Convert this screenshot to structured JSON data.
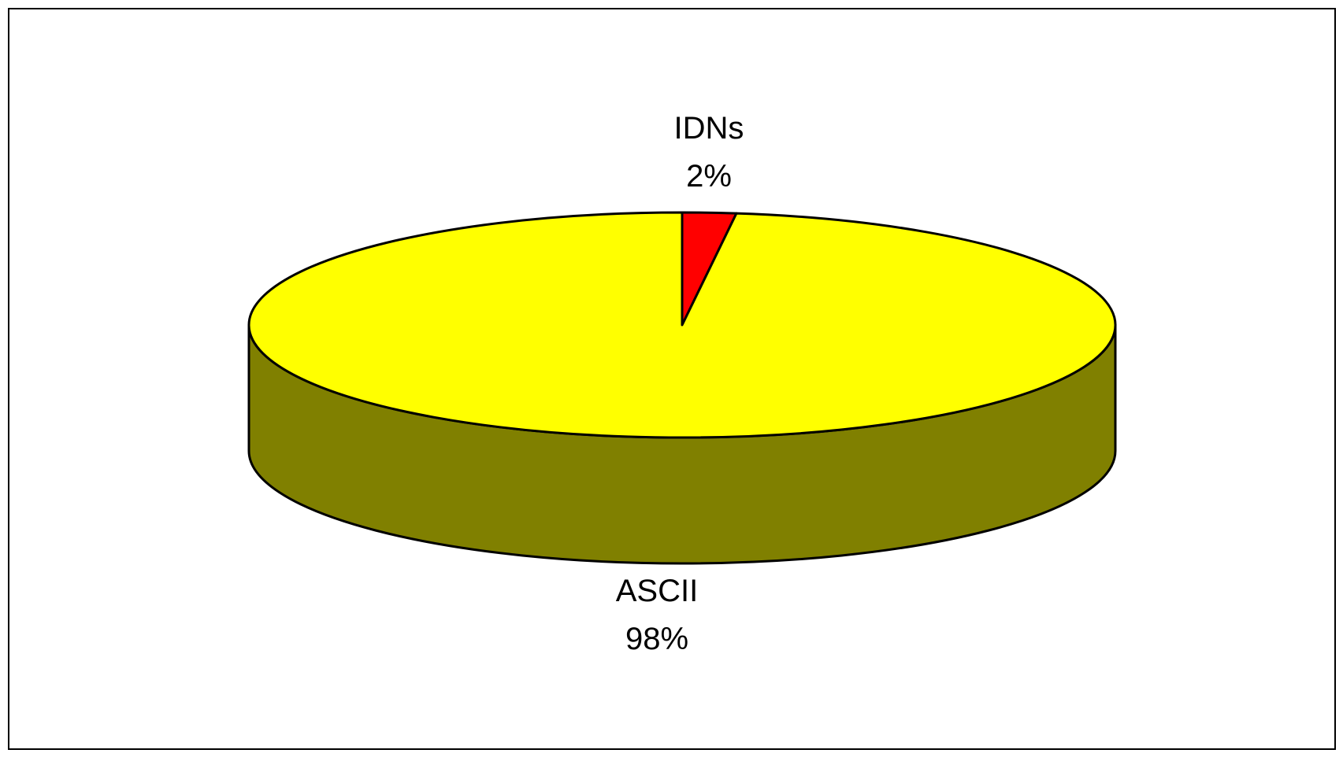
{
  "chart_data": {
    "type": "pie",
    "style": "3d",
    "start_angle": "12 o'clock, clockwise",
    "slices": [
      {
        "name": "IDNs",
        "value": 2,
        "percent_label": "2%",
        "top_color": "#ff0000",
        "side_color": "#800000"
      },
      {
        "name": "ASCII",
        "value": 98,
        "percent_label": "98%",
        "top_color": "#ffff00",
        "side_color": "#808000"
      }
    ],
    "legend": "none",
    "data_labels": "category name and percentage"
  }
}
